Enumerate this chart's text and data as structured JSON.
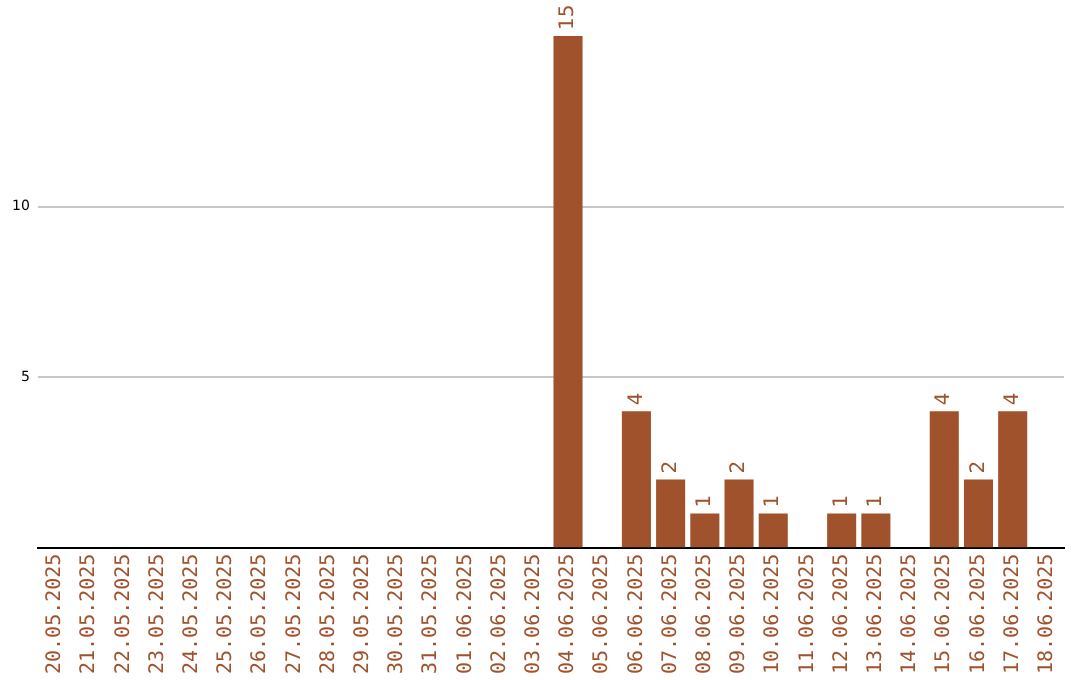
{
  "chart_data": {
    "type": "bar",
    "categories": [
      "20.05.2025",
      "21.05.2025",
      "22.05.2025",
      "23.05.2025",
      "24.05.2025",
      "25.05.2025",
      "26.05.2025",
      "27.05.2025",
      "28.05.2025",
      "29.05.2025",
      "30.05.2025",
      "31.05.2025",
      "01.06.2025",
      "02.06.2025",
      "03.06.2025",
      "04.06.2025",
      "05.06.2025",
      "06.06.2025",
      "07.06.2025",
      "08.06.2025",
      "09.06.2025",
      "10.06.2025",
      "11.06.2025",
      "12.06.2025",
      "13.06.2025",
      "14.06.2025",
      "15.06.2025",
      "16.06.2025",
      "17.06.2025",
      "18.06.2025"
    ],
    "values": [
      0,
      0,
      0,
      0,
      0,
      0,
      0,
      0,
      0,
      0,
      0,
      0,
      0,
      0,
      0,
      15,
      0,
      4,
      2,
      1,
      2,
      1,
      0,
      1,
      1,
      0,
      4,
      2,
      4,
      0
    ],
    "value_labels": [
      null,
      null,
      null,
      null,
      null,
      null,
      null,
      null,
      null,
      null,
      null,
      null,
      null,
      null,
      null,
      "15",
      null,
      "4",
      "2",
      "1",
      "2",
      "1",
      null,
      "1",
      "1",
      null,
      "4",
      "2",
      "4",
      null
    ],
    "color": "#a0522d",
    "ylim": [
      0,
      15
    ],
    "yticks": [
      5,
      10
    ],
    "grid": "y",
    "legend": false
  }
}
